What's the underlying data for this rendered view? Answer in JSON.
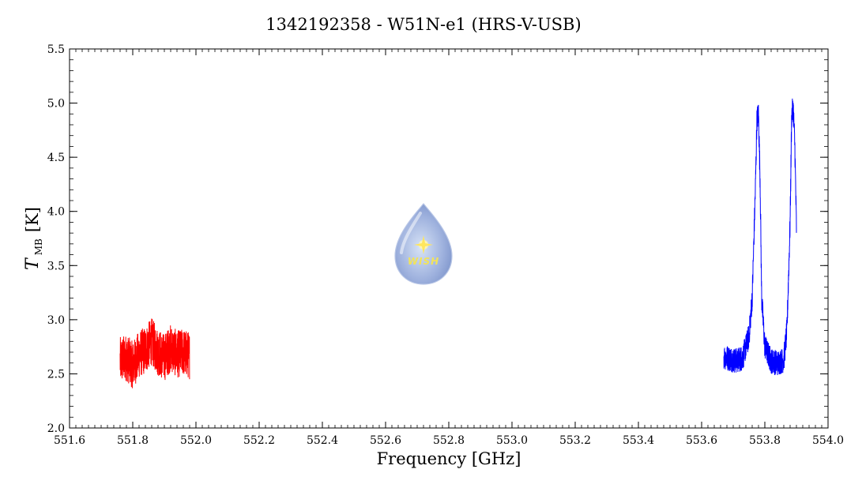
{
  "chart_data": {
    "type": "line",
    "title": "1342192358 - W51N-e1 (HRS-V-USB)",
    "xlabel": "Frequency [GHz]",
    "ylabel": {
      "symbol": "T",
      "subscript": "MB",
      "unit": "[K]"
    },
    "xlim": [
      551.6,
      554.0
    ],
    "ylim": [
      2.0,
      5.5
    ],
    "xticks": [
      "551.6",
      "551.8",
      "552.0",
      "552.2",
      "552.4",
      "552.6",
      "552.8",
      "553.0",
      "553.2",
      "553.4",
      "553.6",
      "553.8",
      "554.0"
    ],
    "yticks": [
      "2.0",
      "2.5",
      "3.0",
      "3.5",
      "4.0",
      "4.5",
      "5.0",
      "5.5"
    ],
    "grid": false,
    "logo": {
      "text": "WISH",
      "icon": "water-drop-star-icon"
    },
    "series": [
      {
        "color": "#ff0000",
        "style": "noisy",
        "x": [
          551.76,
          551.78,
          551.8,
          551.82,
          551.84,
          551.86,
          551.88,
          551.9,
          551.92,
          551.94,
          551.96,
          551.98
        ],
        "y": [
          2.62,
          2.65,
          2.58,
          2.68,
          2.72,
          2.8,
          2.7,
          2.65,
          2.74,
          2.68,
          2.7,
          2.67
        ]
      },
      {
        "color": "#0000ff",
        "style": "noisy",
        "x": [
          553.67,
          553.69,
          553.71,
          553.73,
          553.75,
          553.76,
          553.77,
          553.775,
          553.78,
          553.785,
          553.79,
          553.8,
          553.82,
          553.84,
          553.86,
          553.87,
          553.88,
          553.885,
          553.89,
          553.895,
          553.9
        ],
        "y": [
          2.66,
          2.64,
          2.62,
          2.65,
          2.85,
          3.2,
          4.2,
          4.85,
          4.9,
          4.3,
          3.2,
          2.75,
          2.62,
          2.6,
          2.63,
          2.9,
          3.9,
          4.9,
          4.95,
          4.6,
          3.85
        ]
      }
    ]
  }
}
